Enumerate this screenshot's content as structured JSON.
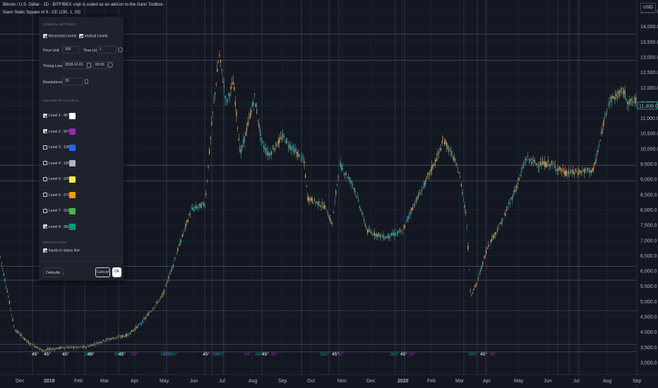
{
  "header": {
    "symbol_line": "Bitcoin / U.S. Dollar · 1D · BITFINEX",
    "indicator_line": "Gann Static Square of 9 - CE (100, 1, 20)",
    "note": "cript is coded as an add-on to the Gann Toolbox."
  },
  "currency": "USD",
  "price_axis": {
    "labels": [
      "14,500.0",
      "14,000.0",
      "13,500.0",
      "13,000.0",
      "12,500.0",
      "12,000.0",
      "11,500.0",
      "11,000.0",
      "10,500.0",
      "10,000.0",
      "9,500.0",
      "9,000.0",
      "8,500.0",
      "8,000.0",
      "7,500.0",
      "7,000.0",
      "6,500.0",
      "6,000.0",
      "5,500.0",
      "5,000.0",
      "4,500.0",
      "4,000.0",
      "3,500.0",
      "3,000.0"
    ],
    "values": [
      14500,
      14000,
      13500,
      13000,
      12500,
      12000,
      11500,
      11000,
      10500,
      10000,
      9500,
      9000,
      8500,
      8000,
      7500,
      7000,
      6500,
      6000,
      5500,
      5000,
      4500,
      4000,
      3500,
      3000
    ],
    "last_price": "11,408.0",
    "last_value": 11408
  },
  "time_axis": {
    "labels": [
      "Dec",
      "2019",
      "Feb",
      "Mar",
      "Apr",
      "May",
      "Jun",
      "Jul",
      "Aug",
      "Sep",
      "Oct",
      "Nov",
      "Dec",
      "2020",
      "Feb",
      "Mar",
      "Apr",
      "May",
      "Jun",
      "Jul",
      "Aug",
      "Sep"
    ],
    "bold": [
      "2019",
      "2020"
    ]
  },
  "gann_levels": {
    "horizontal": [
      3350,
      3600,
      4700,
      5700,
      6150,
      8950,
      9450,
      12900,
      13750
    ],
    "markers": [
      {
        "t": "45°",
        "c": "#ffffff"
      },
      {
        "t": "45°",
        "c": "#ffffff"
      },
      {
        "t": "45°",
        "c": "#ffffff"
      },
      {
        "t": "360°",
        "c": "#089981"
      },
      {
        "t": "45°",
        "c": "#ffffff"
      },
      {
        "t": "360°",
        "c": "#089981"
      },
      {
        "t": "45°",
        "c": "#ffffff"
      },
      {
        "t": "90°",
        "c": "#9c27b0"
      },
      {
        "t": "360°",
        "c": "#089981"
      },
      {
        "t": "90°",
        "c": "#9c27b0"
      },
      {
        "t": "360°",
        "c": "#089981"
      },
      {
        "t": "45°",
        "c": "#ffffff"
      },
      {
        "t": "90°",
        "c": "#9c27b0"
      },
      {
        "t": "360°",
        "c": "#089981"
      },
      {
        "t": "90°",
        "c": "#9c27b0"
      },
      {
        "t": "360°",
        "c": "#089981"
      },
      {
        "t": "45°",
        "c": "#ffffff"
      },
      {
        "t": "90°",
        "c": "#9c27b0"
      },
      {
        "t": "360°",
        "c": "#089981"
      },
      {
        "t": "45°",
        "c": "#ffffff"
      },
      {
        "t": "90°",
        "c": "#9c27b0"
      },
      {
        "t": "360°",
        "c": "#089981"
      },
      {
        "t": "45°",
        "c": "#ffffff"
      },
      {
        "t": "90°",
        "c": "#9c27b0"
      },
      {
        "t": "360°",
        "c": "#089981"
      },
      {
        "t": "45°",
        "c": "#ffffff"
      },
      {
        "t": "90°",
        "c": "#9c27b0"
      }
    ]
  },
  "dialog": {
    "general_settings": "GENERAL SETTINGS",
    "horizontal_levels": "Horizontal Levels",
    "vertical_levels": "Vertical Levels",
    "price_unit_label": "Price Unit",
    "price_unit_value": "100",
    "time_unit_label": "Time Unit",
    "time_unit_value": "1",
    "timing_level_label": "Timing Level",
    "timing_date": "2018-12-01",
    "timing_time": "00:00",
    "revolutions_label": "Revolutions",
    "revolutions_value": "20",
    "square_of_9_levels": "SQUARE OF 9 LEVELS",
    "levels": [
      {
        "label": "Level 1 : 45°",
        "checked": true,
        "color": "#ffffff"
      },
      {
        "label": "Level 2 : 90°",
        "checked": true,
        "color": "#9c27b0"
      },
      {
        "label": "Level 3 : 135°",
        "checked": false,
        "color": "#2962ff"
      },
      {
        "label": "Level 4 : 180°",
        "checked": false,
        "color": "#b2b5be"
      },
      {
        "label": "Level 5 : 225°",
        "checked": false,
        "color": "#ffeb3b"
      },
      {
        "label": "Level 6 : 270°",
        "checked": false,
        "color": "#ff9800"
      },
      {
        "label": "Level 7 : 315°",
        "checked": false,
        "color": "#4caf50"
      },
      {
        "label": "Level 8 : 360°",
        "checked": true,
        "color": "#089981"
      }
    ],
    "input_values": "INPUT VALUES",
    "inputs_in_status_line": "Inputs in status line",
    "defaults_button": "Defaults",
    "cancel_button": "Cancel",
    "ok_button": "Ok"
  },
  "colors": {
    "up": "#e8a24a",
    "down": "#3ab5b0",
    "background": "#131722"
  }
}
